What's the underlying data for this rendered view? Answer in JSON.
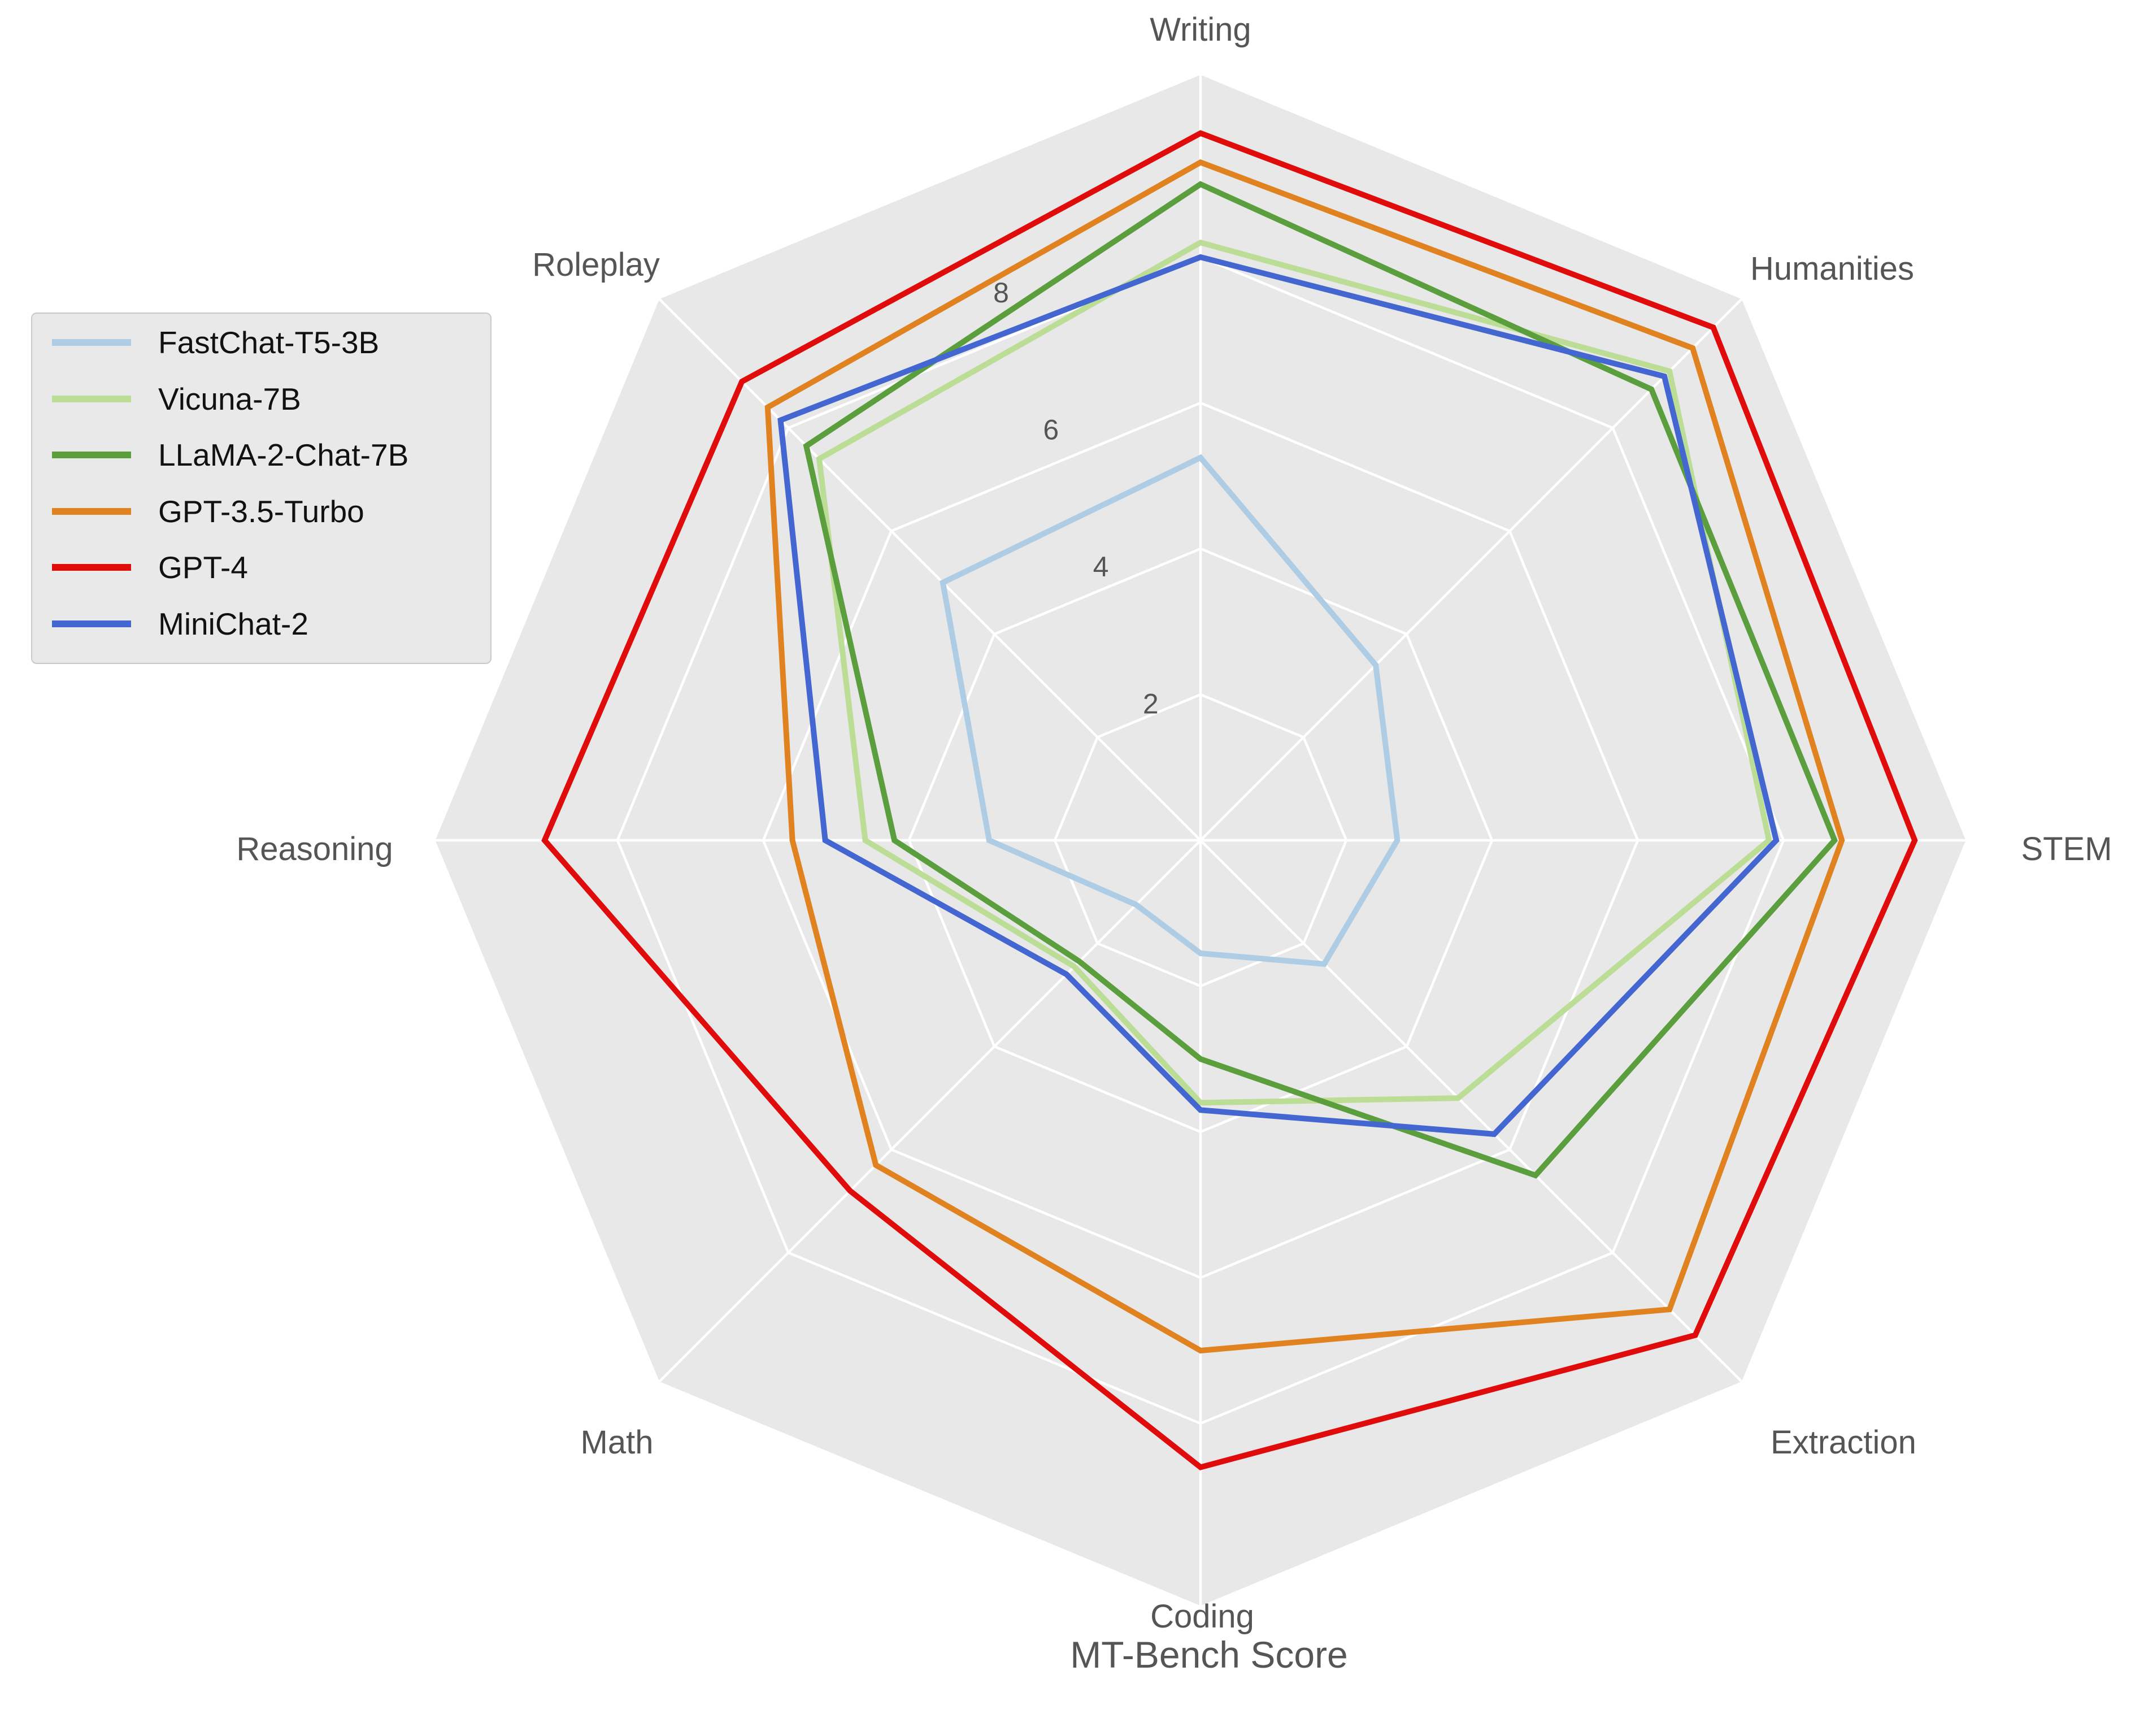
{
  "chart_data": {
    "type": "radar",
    "title": "MT-Bench Score",
    "categories": [
      "Writing",
      "Humanities",
      "STEM",
      "Extraction",
      "Coding",
      "Math",
      "Reasoning",
      "Roleplay"
    ],
    "rmax": 10.5,
    "rings": [
      2,
      4,
      6,
      8
    ],
    "tick_labels": [
      "2",
      "4",
      "6",
      "8"
    ],
    "grid": true,
    "legend_position": "upper-left",
    "series": [
      {
        "name": "FastChat-T5-3B",
        "color": "#aecde4",
        "values": [
          5.25,
          3.4,
          2.7,
          2.4,
          1.55,
          1.25,
          2.9,
          5.0
        ]
      },
      {
        "name": "Vicuna-7B",
        "color": "#bcdd96",
        "values": [
          8.2,
          9.1,
          7.8,
          5.0,
          3.6,
          2.45,
          4.6,
          7.4
        ]
      },
      {
        "name": "LLaMA-2-Chat-7B",
        "color": "#5b9e3d",
        "values": [
          9.0,
          8.75,
          8.7,
          6.5,
          3.0,
          2.35,
          4.2,
          7.65
        ]
      },
      {
        "name": "GPT-3.5-Turbo",
        "color": "#e0821f",
        "values": [
          9.3,
          9.55,
          8.8,
          9.1,
          7.0,
          6.3,
          5.6,
          8.4
        ]
      },
      {
        "name": "GPT-4",
        "color": "#e00c0c",
        "values": [
          9.7,
          9.95,
          9.8,
          9.6,
          8.6,
          6.8,
          9.0,
          8.9
        ]
      },
      {
        "name": "MiniChat-2",
        "color": "#4466d0",
        "values": [
          8.0,
          9.0,
          7.9,
          5.7,
          3.7,
          2.6,
          5.15,
          8.15
        ]
      }
    ],
    "colors": {
      "plot_bg": "#e8e8e8",
      "grid": "#ffffff",
      "text": "#555555"
    }
  }
}
